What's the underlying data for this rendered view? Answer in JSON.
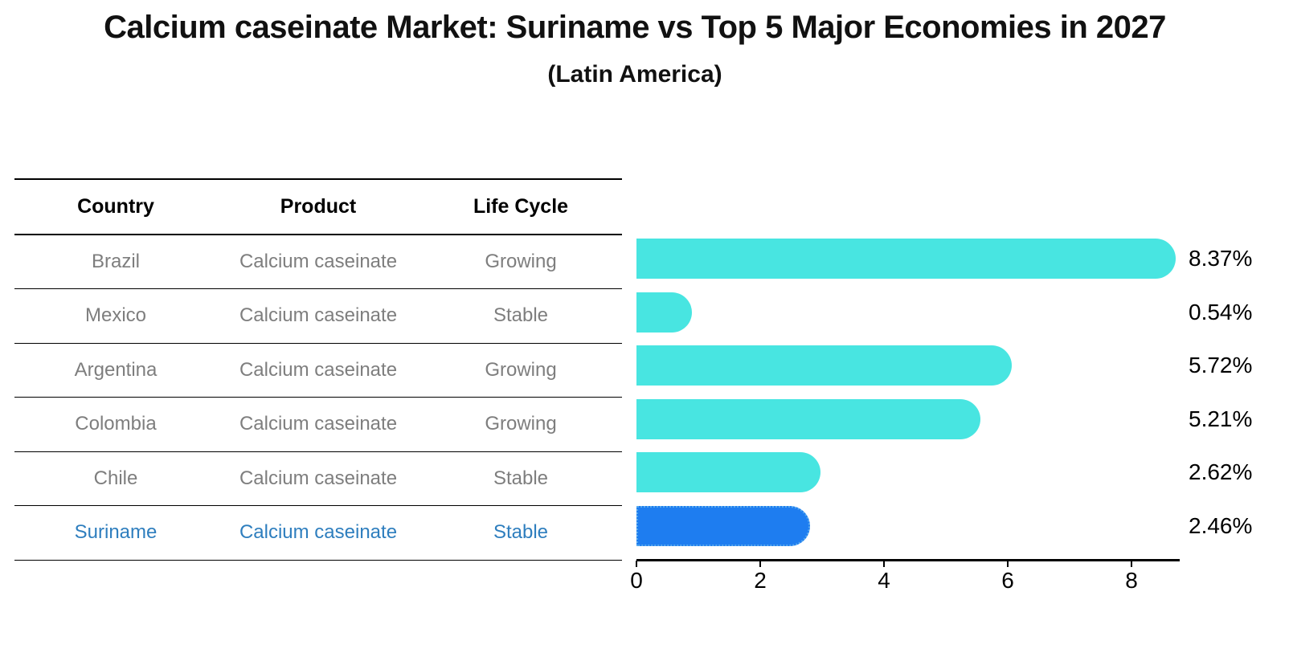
{
  "title": "Calcium caseinate Market: Suriname vs Top 5 Major Economies in 2027",
  "subtitle": "(Latin America)",
  "table": {
    "headers": [
      "Country",
      "Product",
      "Life Cycle"
    ],
    "rows": [
      {
        "country": "Brazil",
        "product": "Calcium caseinate",
        "life_cycle": "Growing",
        "highlighted": false
      },
      {
        "country": "Mexico",
        "product": "Calcium caseinate",
        "life_cycle": "Stable",
        "highlighted": false
      },
      {
        "country": "Argentina",
        "product": "Calcium caseinate",
        "life_cycle": "Growing",
        "highlighted": false
      },
      {
        "country": "Colombia",
        "product": "Calcium caseinate",
        "life_cycle": "Growing",
        "highlighted": false
      },
      {
        "country": "Chile",
        "product": "Calcium caseinate",
        "life_cycle": "Stable",
        "highlighted": false
      },
      {
        "country": "Suriname",
        "product": "Calcium caseinate",
        "life_cycle": "Stable",
        "highlighted": true
      }
    ]
  },
  "chart_data": {
    "type": "bar",
    "orientation": "horizontal",
    "title": "Calcium caseinate Market: Suriname vs Top 5 Major Economies in 2027 (Latin America)",
    "categories": [
      "Brazil",
      "Mexico",
      "Argentina",
      "Colombia",
      "Chile",
      "Suriname"
    ],
    "values": [
      8.37,
      0.54,
      5.72,
      5.21,
      2.62,
      2.46
    ],
    "value_labels": [
      "8.37%",
      "0.54%",
      "5.72%",
      "5.21%",
      "2.62%",
      "2.46%"
    ],
    "x_ticks": [
      0,
      2,
      4,
      6,
      8
    ],
    "xlim": [
      0,
      8.8
    ],
    "xlabel": "",
    "ylabel": "",
    "grid": false,
    "legend": false,
    "highlight_index": 5
  },
  "colors": {
    "bar": "#48e5e1",
    "highlight_bar": "#1e7df0",
    "highlight_border": "#58aaee",
    "highlight_text": "#2e7ebe",
    "row_text": "#7e7e7e",
    "axis": "#000000"
  }
}
